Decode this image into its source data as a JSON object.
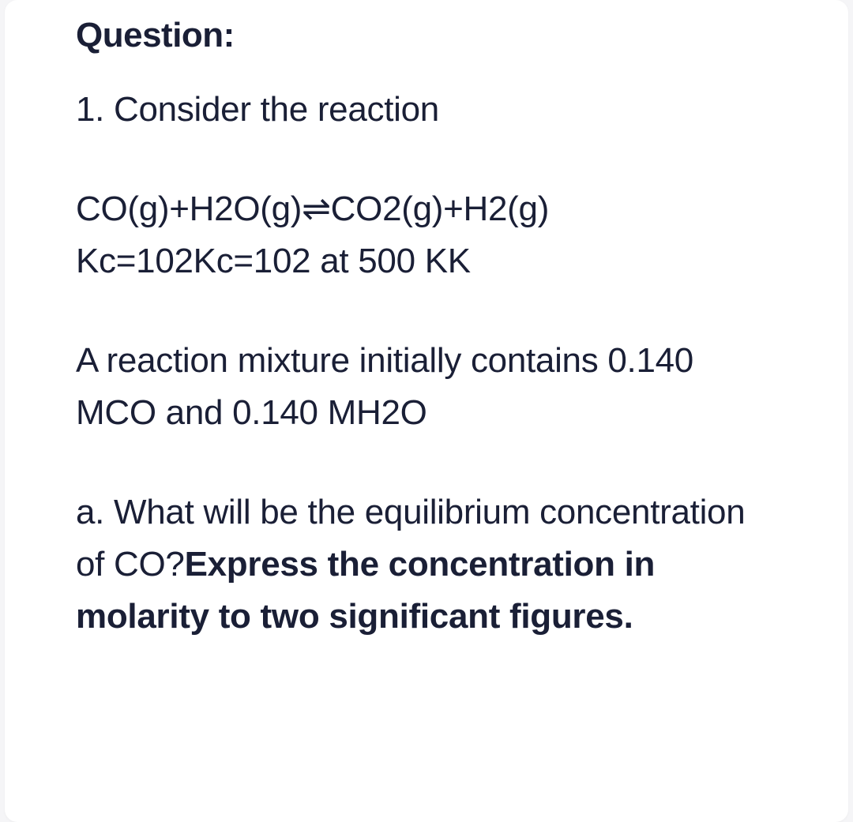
{
  "colors": {
    "text": "#1a1f36",
    "card_bg": "#ffffff",
    "page_bg": "#f5f5f7"
  },
  "typography": {
    "heading_fontsize": 44,
    "heading_weight": 700,
    "body_fontsize": 44,
    "body_weight": 400,
    "bold_weight": 700,
    "line_height": 1.5
  },
  "question": {
    "label": "Question:",
    "intro": "1. Consider the reaction",
    "equation_line1": "CO(g)+H2O(g)⇌CO2(g)+H2(g)",
    "equation_line2": "Kc=102Kc=102 at 500 KK",
    "conditions": "A reaction mixture initially contains 0.140 MCO and 0.140 MH2O",
    "part_a_prefix": "a. What will be the equilibrium concentration of CO?",
    "part_a_bold": "Express the concentration in molarity to two significant figures."
  }
}
